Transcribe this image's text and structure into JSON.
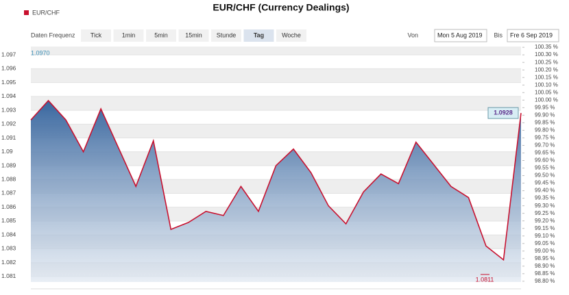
{
  "chart_data": {
    "type": "area",
    "title": "EUR/CHF (Currency Dealings)",
    "series": [
      {
        "name": "EUR/CHF",
        "color": "#c8102e",
        "values": [
          1.0923,
          1.0937,
          1.0923,
          1.09,
          1.0931,
          1.0903,
          1.0875,
          1.0908,
          1.0844,
          1.0849,
          1.0857,
          1.0854,
          1.0875,
          1.0857,
          1.089,
          1.0902,
          1.0885,
          1.0861,
          1.0848,
          1.0871,
          1.0884,
          1.0877,
          1.0907,
          1.0891,
          1.0875,
          1.0867,
          1.0832,
          1.0822,
          1.0928
        ],
        "value_labels": [
          null,
          null,
          null,
          null,
          null,
          null,
          null,
          null,
          null,
          null,
          null,
          null,
          null,
          null,
          null,
          null,
          null,
          null,
          null,
          null,
          null,
          null,
          null,
          null,
          null,
          null,
          null,
          null,
          "1.0928"
        ]
      }
    ],
    "ylim": [
      1.0806,
      1.0976
    ],
    "yticks": [
      1.081,
      1.082,
      1.083,
      1.084,
      1.085,
      1.086,
      1.087,
      1.088,
      1.089,
      1.09,
      1.091,
      1.092,
      1.093,
      1.094,
      1.095,
      1.096,
      1.097
    ],
    "y2lim": [
      98.795,
      100.355
    ],
    "y2ticks": [
      {
        "value": 98.8,
        "label": "98.80 %"
      },
      {
        "value": 98.85,
        "label": "98.85 %"
      },
      {
        "value": 98.9,
        "label": "98.90 %"
      },
      {
        "value": 98.95,
        "label": "98.95 %"
      },
      {
        "value": 99.0,
        "label": "99.00 %"
      },
      {
        "value": 99.05,
        "label": "99.05 %"
      },
      {
        "value": 99.1,
        "label": "99.10 %"
      },
      {
        "value": 99.15,
        "label": "99.15 %"
      },
      {
        "value": 99.2,
        "label": "99.20 %"
      },
      {
        "value": 99.25,
        "label": "99.25 %"
      },
      {
        "value": 99.3,
        "label": "99.30 %"
      },
      {
        "value": 99.35,
        "label": "99.35 %"
      },
      {
        "value": 99.4,
        "label": "99.40 %"
      },
      {
        "value": 99.45,
        "label": "99.45 %"
      },
      {
        "value": 99.5,
        "label": "99.50 %"
      },
      {
        "value": 99.55,
        "label": "99.55 %"
      },
      {
        "value": 99.6,
        "label": "99.60 %"
      },
      {
        "value": 99.65,
        "label": "99.65 %"
      },
      {
        "value": 99.7,
        "label": "99.70 %"
      },
      {
        "value": 99.75,
        "label": "99.75 %"
      },
      {
        "value": 99.8,
        "label": "99.80 %"
      },
      {
        "value": 99.85,
        "label": "99.85 %"
      },
      {
        "value": 99.9,
        "label": "99.90 %"
      },
      {
        "value": 99.95,
        "label": "99.95 %"
      },
      {
        "value": 100.0,
        "label": "100.00 %"
      },
      {
        "value": 100.05,
        "label": "100.05 %"
      },
      {
        "value": 100.1,
        "label": "100.10 %"
      },
      {
        "value": 100.15,
        "label": "100.15 %"
      },
      {
        "value": 100.2,
        "label": "100.20 %"
      },
      {
        "value": 100.25,
        "label": "100.25 %"
      },
      {
        "value": 100.3,
        "label": "100.30 %"
      },
      {
        "value": 100.35,
        "label": "100.35 %"
      }
    ],
    "annotations": {
      "high": "1.0970",
      "low": "1.0811"
    },
    "grid": true
  },
  "toolbar": {
    "label": "Daten Frequenz",
    "frequencies": [
      "Tick",
      "1min",
      "5min",
      "15min",
      "Stunde",
      "Tag",
      "Woche"
    ],
    "selected": 5
  },
  "date_range": {
    "from_label": "Von",
    "from": "Mon 5 Aug 2019",
    "to_label": "Bis",
    "to": "Fre 6 Sep 2019"
  }
}
